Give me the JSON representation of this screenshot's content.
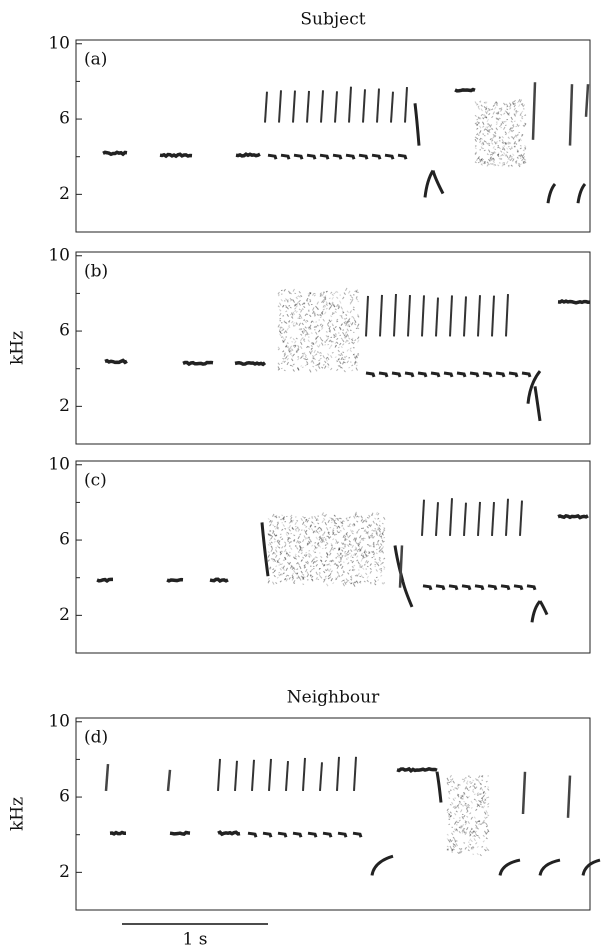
{
  "chart_data": [
    {
      "type": "spectrogram",
      "title": "Subject",
      "label": "(a)",
      "ylim": [
        0,
        10.2
      ],
      "yticks": [
        2,
        6,
        10
      ],
      "minor_yticks": [
        4,
        8
      ]
    },
    {
      "type": "spectrogram",
      "label": "(b)",
      "ylabel": "kHz",
      "ylim": [
        0,
        10.2
      ],
      "yticks": [
        2,
        6,
        10
      ],
      "minor_yticks": [
        4,
        8
      ]
    },
    {
      "type": "spectrogram",
      "label": "(c)",
      "ylim": [
        0,
        10.2
      ],
      "yticks": [
        2,
        6,
        10
      ],
      "minor_yticks": [
        4,
        8
      ]
    },
    {
      "type": "spectrogram",
      "title": "Neighbour",
      "label": "(d)",
      "ylabel": "kHz",
      "ylim": [
        0,
        10.2
      ],
      "yticks": [
        2,
        6,
        10
      ],
      "minor_yticks": [
        4,
        8
      ]
    }
  ],
  "scale_bar": {
    "label": "1 s"
  }
}
